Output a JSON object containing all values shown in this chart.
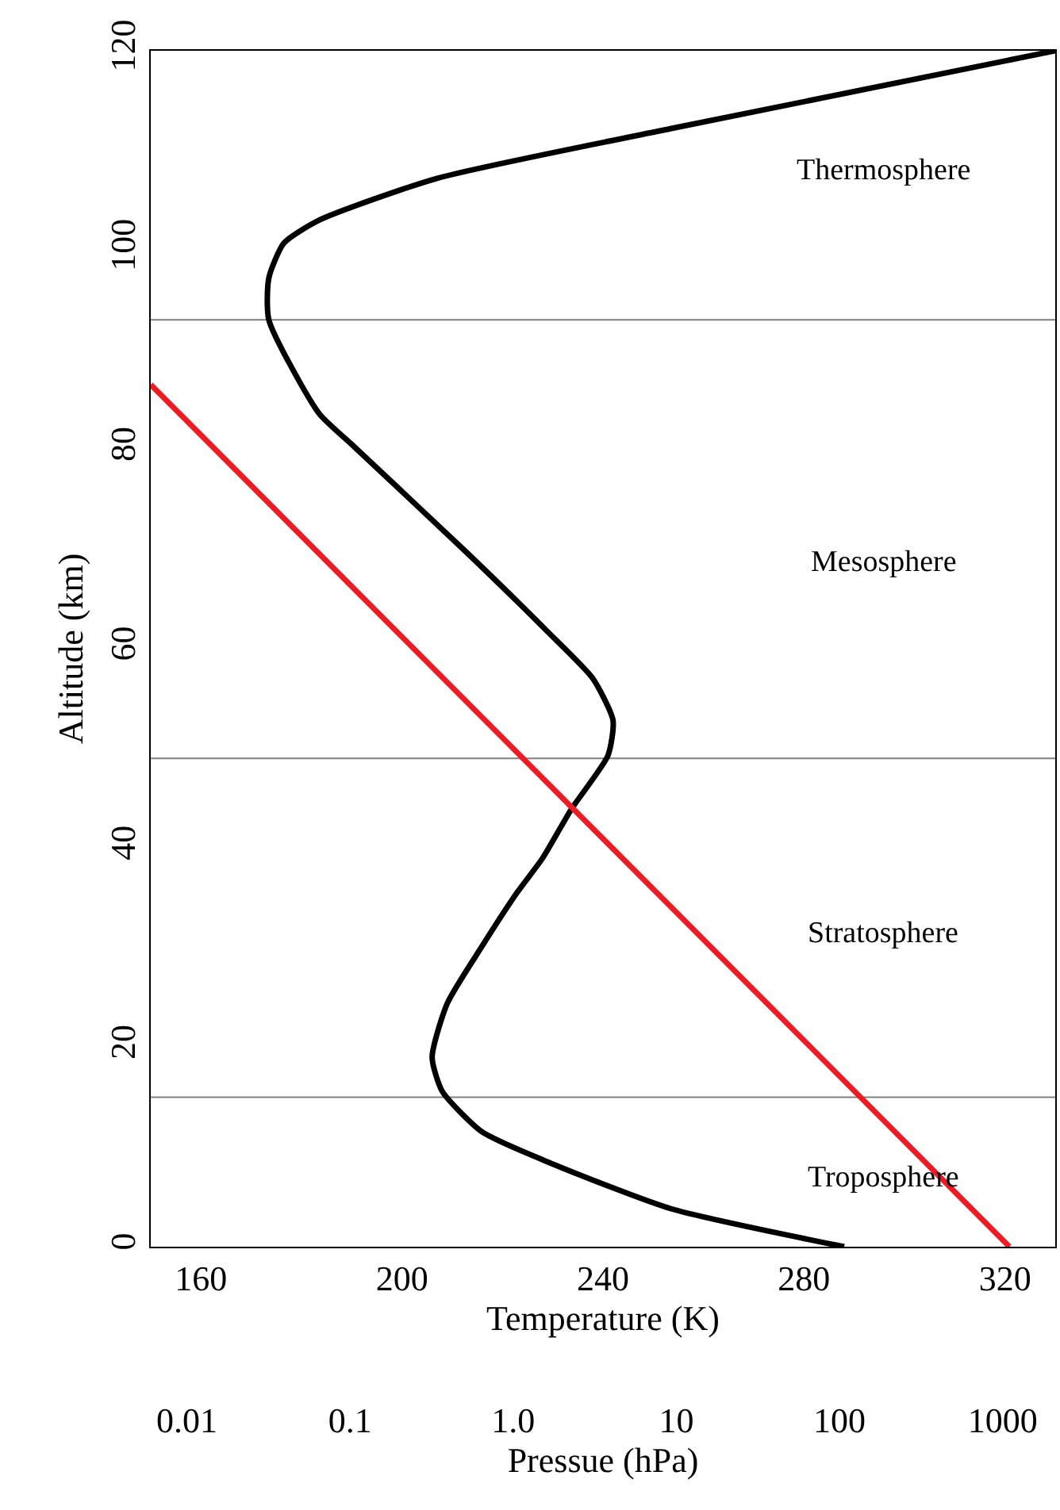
{
  "chart_data": {
    "type": "line",
    "xlabel": "Temperature (K)",
    "ylabel": "Altitude (km)",
    "x2label": "Pressue (hPa)",
    "xlim": [
      150,
      330
    ],
    "xticks": [
      160,
      200,
      240,
      280,
      320
    ],
    "x2lim": [
      0.006,
      2100
    ],
    "x2ticks": [
      {
        "value": 0.01,
        "label": "0.01"
      },
      {
        "value": 0.1,
        "label": "0.1"
      },
      {
        "value": 1,
        "label": "1.0"
      },
      10,
      100,
      1000
    ],
    "ylim": [
      0,
      120
    ],
    "yticks": [
      0,
      20,
      40,
      60,
      80,
      100,
      120
    ],
    "log": "x2",
    "grid": false,
    "marker": "none",
    "line_style": "solid",
    "series": [
      {
        "color": "#000000",
        "x": [
          288,
          253.6,
          230,
          216,
          208,
          206,
          209,
          216,
          223,
          228,
          233.7,
          241,
          242,
          238,
          229,
          213,
          190,
          183.5,
          173.5,
          173.5,
          176.5,
          183.5,
          207,
          253.6,
          330
        ],
        "values": [
          0,
          3.8,
          8.3,
          11.5,
          15.6,
          19,
          24.4,
          30.2,
          35.6,
          39,
          43.9,
          49.3,
          52.8,
          57,
          61.7,
          69.6,
          80.5,
          83.6,
          93,
          97.2,
          100.7,
          103,
          107.2,
          112.2,
          120
        ]
      },
      {
        "color": "#ed1c24",
        "axis": "x2",
        "x": [
          0.006,
          1100
        ],
        "values": [
          86.5,
          0
        ]
      }
    ],
    "ref_lines": [
      {
        "axis": "y",
        "value": 15,
        "color": "#808080"
      },
      {
        "axis": "y",
        "value": 49,
        "color": "#808080"
      },
      {
        "axis": "y",
        "value": 93,
        "color": "#808080"
      }
    ],
    "annotations": [
      "Thermosphere",
      "Mesosphere",
      "Stratosphere",
      "Troposphere"
    ]
  }
}
